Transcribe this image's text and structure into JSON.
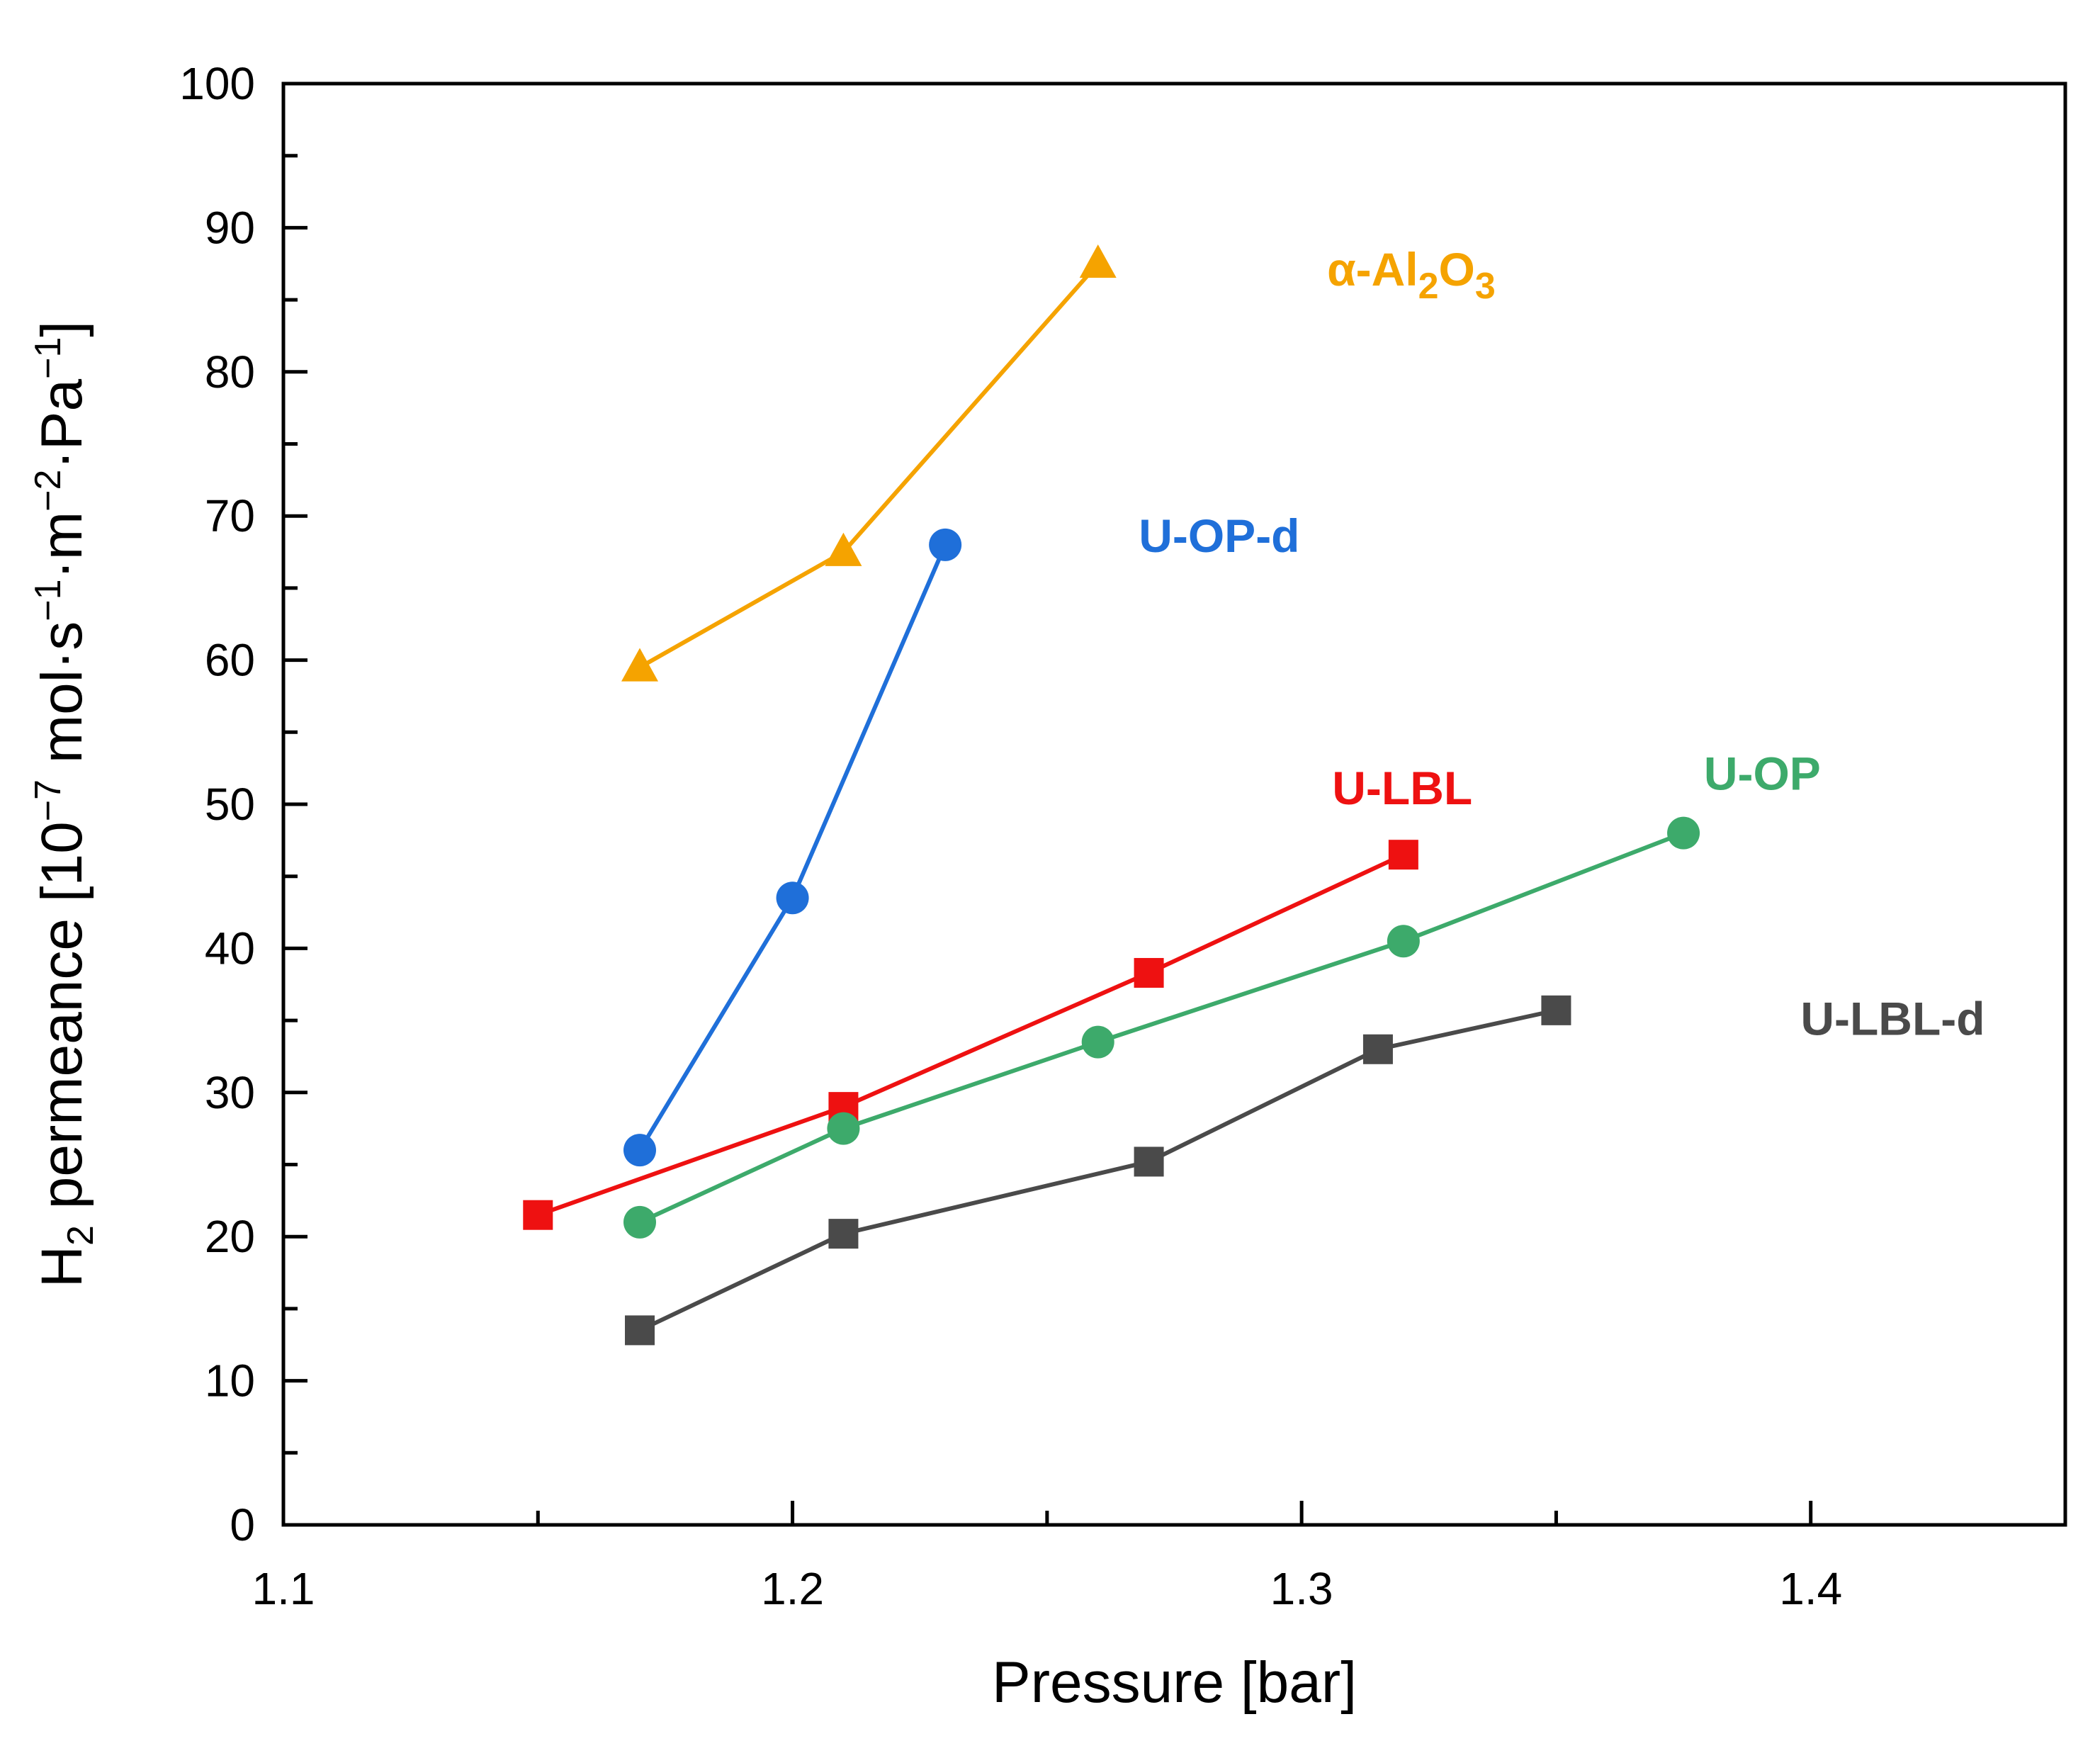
{
  "chart_data": {
    "type": "line",
    "title": "",
    "xlabel": "Pressure [bar]",
    "ylabel": {
      "species": "H",
      "species_sub": "2",
      "quantity": " permeance [10",
      "exp1": "−7",
      "unit_mol_s": " mol·s",
      "exp2": "−1",
      "unit_m": "·m",
      "exp3": "−2",
      "unit_pa": "·Pa",
      "exp4": "−1",
      "close": "]"
    },
    "xlim": [
      1.1,
      1.45
    ],
    "ylim": [
      0,
      100
    ],
    "xticks": [
      1.1,
      1.2,
      1.3,
      1.4
    ],
    "xtick_labels": [
      "1.1",
      "1.2",
      "1.3",
      "1.4"
    ],
    "yticks": [
      0,
      10,
      20,
      30,
      40,
      50,
      60,
      70,
      80,
      90,
      100
    ],
    "ytick_labels": [
      "0",
      "10",
      "20",
      "30",
      "40",
      "50",
      "60",
      "70",
      "80",
      "90",
      "100"
    ],
    "grid": false,
    "series": [
      {
        "name": "α-Al2O3",
        "label_parts": {
          "main": "α-Al",
          "sub1": "2",
          "mid": "O",
          "sub2": "3"
        },
        "color": "#F5A300",
        "marker": "triangle",
        "x": [
          1.17,
          1.21,
          1.26
        ],
        "y": [
          59.5,
          67.5,
          87.5
        ],
        "label_anchor": [
          1.305,
          86
        ]
      },
      {
        "name": "U-OP-d",
        "color": "#1F6FD9",
        "marker": "circle",
        "x": [
          1.17,
          1.2,
          1.23
        ],
        "y": [
          26,
          43.5,
          68
        ],
        "label_anchor": [
          1.268,
          67.5
        ]
      },
      {
        "name": "U-LBL",
        "color": "#EE1111",
        "marker": "square",
        "x": [
          1.15,
          1.21,
          1.27,
          1.32
        ],
        "y": [
          21.5,
          29,
          38.3,
          46.5
        ],
        "label_anchor": [
          1.306,
          50
        ]
      },
      {
        "name": "U-OP",
        "color": "#3DAA6B",
        "marker": "circle",
        "x": [
          1.17,
          1.21,
          1.26,
          1.32,
          1.375
        ],
        "y": [
          21,
          27.5,
          33.5,
          40.5,
          48
        ],
        "label_anchor": [
          1.379,
          51
        ]
      },
      {
        "name": "U-LBL-d",
        "color": "#4A4A4A",
        "marker": "square",
        "x": [
          1.17,
          1.21,
          1.27,
          1.315,
          1.35
        ],
        "y": [
          13.5,
          20.2,
          25.2,
          33,
          35.7
        ],
        "label_anchor": [
          1.398,
          34
        ]
      }
    ]
  }
}
